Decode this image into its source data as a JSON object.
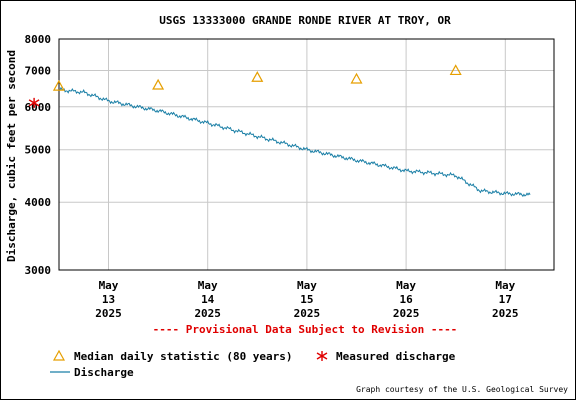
{
  "chart_data": {
    "type": "line",
    "title": "USGS 13333000 GRANDE RONDE RIVER AT TROY, OR",
    "ylabel": "Discharge, cubic feet per second",
    "y_scale": "log",
    "ylim": [
      3000,
      8000
    ],
    "y_ticks": [
      "3000",
      "4000",
      "5000",
      "6000",
      "7000",
      "8000"
    ],
    "x_ticks": [
      {
        "month": "May",
        "day": "13",
        "year": "2025"
      },
      {
        "month": "May",
        "day": "14",
        "year": "2025"
      },
      {
        "month": "May",
        "day": "15",
        "year": "2025"
      },
      {
        "month": "May",
        "day": "16",
        "year": "2025"
      },
      {
        "month": "May",
        "day": "17",
        "year": "2025"
      }
    ],
    "grid": true,
    "series": [
      {
        "name": "Discharge",
        "color": "#1a7fa6",
        "x": [
          "2025-05-12 12:00",
          "2025-05-12 18:00",
          "2025-05-13 00:00",
          "2025-05-13 06:00",
          "2025-05-13 12:00",
          "2025-05-13 18:00",
          "2025-05-14 00:00",
          "2025-05-14 06:00",
          "2025-05-14 12:00",
          "2025-05-14 18:00",
          "2025-05-15 00:00",
          "2025-05-15 06:00",
          "2025-05-15 12:00",
          "2025-05-15 18:00",
          "2025-05-16 00:00",
          "2025-05-16 06:00",
          "2025-05-16 12:00",
          "2025-05-16 18:00",
          "2025-05-17 00:00",
          "2025-05-17 06:00"
        ],
        "values": [
          6450,
          6380,
          6150,
          6020,
          5900,
          5750,
          5600,
          5440,
          5290,
          5150,
          5000,
          4890,
          4780,
          4680,
          4570,
          4530,
          4480,
          4200,
          4150,
          4130
        ]
      },
      {
        "name": "Median daily statistic (80 years)",
        "color": "#e69f00",
        "x": [
          "2025-05-12 12:00",
          "2025-05-13 12:00",
          "2025-05-14 12:00",
          "2025-05-15 12:00",
          "2025-05-16 12:00"
        ],
        "values": [
          6550,
          6580,
          6800,
          6750,
          7000
        ]
      },
      {
        "name": "Measured discharge",
        "color": "#e00000",
        "x": [
          "2025-05-12 06:00"
        ],
        "values": [
          6100
        ]
      }
    ],
    "annotation": "---- Provisional Data Subject to Revision ----",
    "credit": "Graph courtesy of the U.S. Geological Survey",
    "legend_position": "bottom-left"
  }
}
